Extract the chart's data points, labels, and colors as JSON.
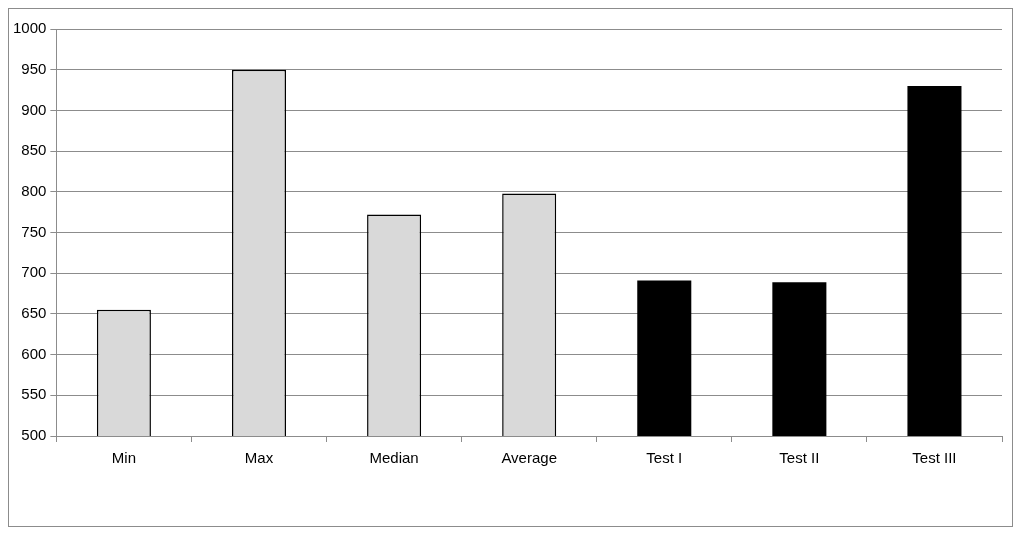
{
  "chart_data": {
    "type": "bar",
    "categories": [
      "Min",
      "Max",
      "Median",
      "Average",
      "Test I",
      "Test II",
      "Test III"
    ],
    "values": [
      655,
      950,
      772,
      798,
      691,
      689,
      930
    ],
    "colors": [
      "#d9d9d9",
      "#d9d9d9",
      "#d9d9d9",
      "#d9d9d9",
      "#000000",
      "#000000",
      "#000000"
    ],
    "ylim": [
      500,
      1000
    ],
    "yticks": [
      500,
      550,
      600,
      650,
      700,
      750,
      800,
      850,
      900,
      950,
      1000
    ],
    "grid": "y",
    "legend": false
  }
}
